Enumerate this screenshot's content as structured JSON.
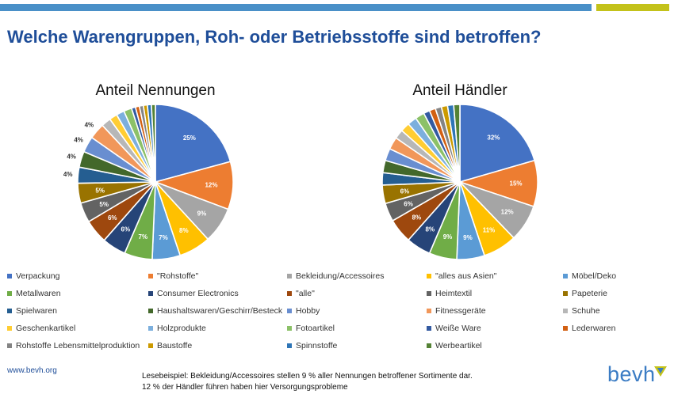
{
  "header": {
    "title": "Welche Warengruppen, Roh- oder Betriebsstoffe sind betroffen?"
  },
  "colors": {
    "palette": [
      "#4472c4",
      "#ed7d31",
      "#a5a5a5",
      "#ffc000",
      "#5b9bd5",
      "#70ad47",
      "#264478",
      "#9e480e",
      "#636363",
      "#997300",
      "#255e91",
      "#43682b",
      "#698ed0",
      "#f1975a",
      "#b7b7b7",
      "#ffcd33",
      "#7cafdd",
      "#8cc168",
      "#335aa1",
      "#d26012",
      "#848484",
      "#cc9a00",
      "#2e75b6",
      "#548235"
    ]
  },
  "chart_data": [
    {
      "type": "pie",
      "title": "Anteil Nennungen",
      "categories": [
        "Verpackung",
        "\"Rohstoffe\"",
        "Bekleidung/Accessoires",
        "\"alles aus Asien\"",
        "Möbel/Deko",
        "Metallwaren",
        "Consumer Electronics",
        "\"alle\"",
        "Heimtextil",
        "Papeterie",
        "Spielwaren",
        "Haushaltswaren/Geschirr/Besteck",
        "Hobby",
        "Fitnessgeräte",
        "Schuhe",
        "Geschenkartikel",
        "Holzprodukte",
        "Fotoartikel",
        "Weiße Ware",
        "Lederwaren",
        "Rohstoffe Lebensmittelproduktion",
        "Baustoffe",
        "Spinnstoffe",
        "Werbeartikel"
      ],
      "values": [
        25,
        12,
        9,
        8,
        7,
        7,
        6,
        6,
        5,
        5,
        4,
        4,
        4,
        4,
        2.4,
        2,
        2,
        2,
        1,
        1,
        1,
        1,
        1,
        1
      ],
      "data_labels": [
        "25%",
        "12%",
        "9%",
        "8%",
        "7%",
        "7%",
        "6%",
        "6%",
        "5%",
        "5%",
        "4%",
        "4%",
        "4%",
        "4%",
        "",
        "",
        "",
        "",
        "",
        "",
        "",
        "",
        "",
        ""
      ]
    },
    {
      "type": "pie",
      "title": "Anteil Händler",
      "categories": [
        "Verpackung",
        "\"Rohstoffe\"",
        "Bekleidung/Accessoires",
        "\"alles aus Asien\"",
        "Möbel/Deko",
        "Metallwaren",
        "Consumer Electronics",
        "\"alle\"",
        "Heimtextil",
        "Papeterie",
        "Spielwaren",
        "Haushaltswaren/Geschirr/Besteck",
        "Hobby",
        "Fitnessgeräte",
        "Schuhe",
        "Geschenkartikel",
        "Holzprodukte",
        "Fotoartikel",
        "Weiße Ware",
        "Lederwaren",
        "Rohstoffe Lebensmittelproduktion",
        "Baustoffe",
        "Spinnstoffe",
        "Werbeartikel"
      ],
      "values": [
        32,
        15,
        12,
        11,
        9,
        9,
        8,
        8,
        6,
        6,
        4,
        4,
        4,
        4,
        3,
        3,
        3,
        3,
        2,
        2,
        2,
        2,
        2,
        2
      ],
      "data_labels": [
        "32%",
        "15%",
        "12%",
        "11%",
        "9%",
        "9%",
        "8%",
        "8%",
        "6%",
        "6%",
        "",
        "",
        "",
        "",
        "",
        "",
        "",
        "",
        "",
        "",
        "",
        "",
        "",
        ""
      ]
    }
  ],
  "legend": {
    "items": [
      "Verpackung",
      "\"Rohstoffe\"",
      "Bekleidung/Accessoires",
      "\"alles aus Asien\"",
      "Möbel/Deko",
      "Metallwaren",
      "Consumer Electronics",
      "\"alle\"",
      "Heimtextil",
      "Papeterie",
      "Spielwaren",
      "Haushaltswaren/Geschirr/Besteck",
      "Hobby",
      "Fitnessgeräte",
      "Schuhe",
      "Geschenkartikel",
      "Holzprodukte",
      "Fotoartikel",
      "Weiße Ware",
      "Lederwaren",
      "Rohstoffe Lebensmittelproduktion",
      "Baustoffe",
      "Spinnstoffe",
      "Werbeartikel"
    ]
  },
  "footer": {
    "url": "www.bevh.org",
    "note_line1": "Lesebeispiel: Bekleidung/Accessoires stellen 9 % aller Nennungen betroffener Sortimente dar.",
    "note_line2": "12 % der Händler führen haben hier Versorgungsprobleme",
    "logo": "bevh"
  }
}
